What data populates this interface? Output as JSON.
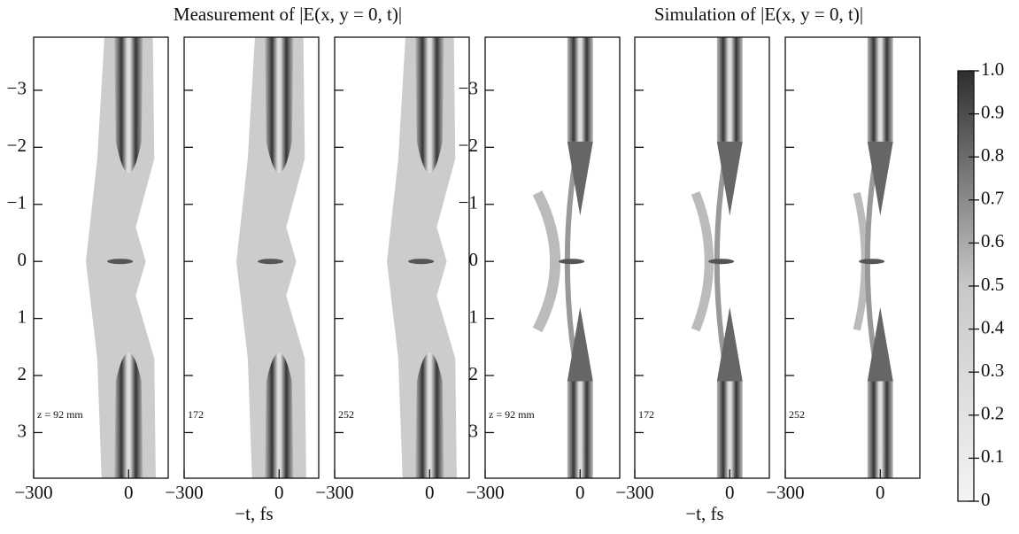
{
  "titles": [
    "Measurement of |E(x, y = 0, t)|",
    "Simulation of  |E(x, y = 0, t)|"
  ],
  "chart_data": [
    {
      "type": "heatmap",
      "kind": "measurement",
      "label": "z = 92 mm",
      "xlim": [
        -300,
        125
      ],
      "xticks": [
        {
          "value": -300,
          "label": "−300"
        },
        0
      ],
      "ylim": [
        -3.93,
        3.8
      ],
      "yticks": [
        {
          "value": -3,
          "label": "−3"
        },
        {
          "value": -2,
          "label": "−2"
        },
        {
          "value": -1,
          "label": "−1"
        },
        0,
        1,
        2,
        3
      ]
    },
    {
      "type": "heatmap",
      "kind": "measurement",
      "label": "172",
      "xlabel": "−t, fs",
      "xlim": [
        -300,
        125
      ],
      "xticks": [
        {
          "value": -300,
          "label": "−300"
        },
        0
      ],
      "ylim": [
        -3.93,
        3.8
      ],
      "yticks": [
        -3,
        -2,
        -1,
        0,
        1,
        2,
        3
      ]
    },
    {
      "type": "heatmap",
      "kind": "measurement",
      "label": "252",
      "xlim": [
        -300,
        125
      ],
      "xticks": [
        {
          "value": -300,
          "label": "−300"
        },
        0
      ],
      "ylim": [
        -3.93,
        3.8
      ],
      "yticks": [
        -3,
        -2,
        -1,
        0,
        1,
        2,
        3
      ]
    },
    {
      "type": "heatmap",
      "kind": "simulation",
      "label": "z = 92 mm",
      "xlim": [
        -300,
        125
      ],
      "xticks": [
        {
          "value": -300,
          "label": "−300"
        },
        0
      ],
      "ylim": [
        -3.93,
        3.8
      ],
      "yticks": [
        {
          "value": -3,
          "label": "−3"
        },
        {
          "value": -2,
          "label": "−2"
        },
        {
          "value": -1,
          "label": "−1"
        },
        0,
        1,
        2,
        3
      ]
    },
    {
      "type": "heatmap",
      "kind": "simulation",
      "label": "172",
      "xlabel": "−t, fs",
      "xlim": [
        -300,
        125
      ],
      "xticks": [
        {
          "value": -300,
          "label": "−300"
        },
        0
      ],
      "ylim": [
        -3.93,
        3.8
      ],
      "yticks": [
        -3,
        -2,
        -1,
        0,
        1,
        2,
        3
      ]
    },
    {
      "type": "heatmap",
      "kind": "simulation",
      "label": "252",
      "xlim": [
        -300,
        125
      ],
      "xticks": [
        {
          "value": -300,
          "label": "−300"
        },
        0
      ],
      "ylim": [
        -3.93,
        3.8
      ],
      "yticks": [
        -3,
        -2,
        -1,
        0,
        1,
        2,
        3
      ]
    }
  ],
  "colorbar": {
    "lim": [
      0,
      1
    ],
    "ticks": [
      0,
      0.1,
      0.2,
      0.3,
      0.4,
      0.5,
      0.6,
      0.7,
      0.8,
      0.9,
      {
        "value": 1,
        "label": "1.0"
      }
    ]
  }
}
